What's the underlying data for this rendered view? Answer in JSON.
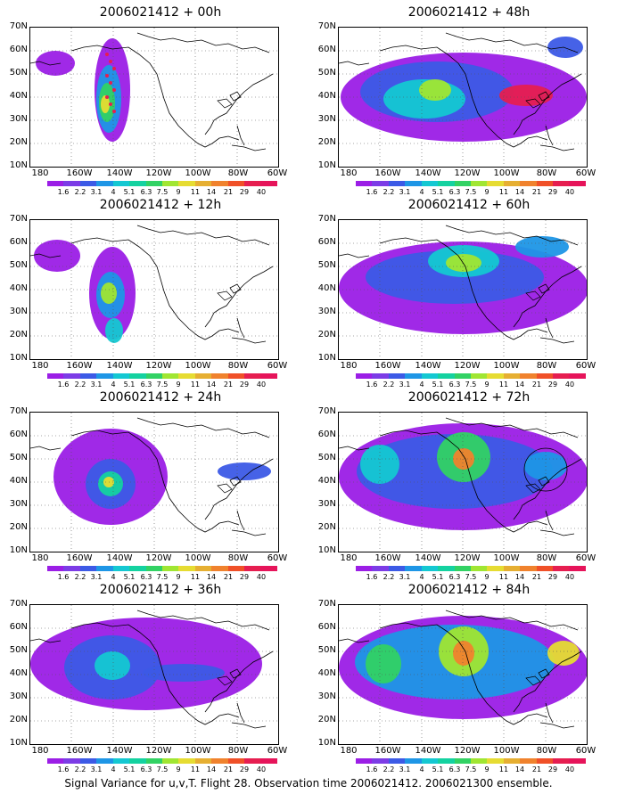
{
  "panels": [
    {
      "title": "2006021412 + 00h"
    },
    {
      "title": "2006021412 + 48h"
    },
    {
      "title": "2006021412 + 12h"
    },
    {
      "title": "2006021412 + 60h"
    },
    {
      "title": "2006021412 + 24h"
    },
    {
      "title": "2006021412 + 72h"
    },
    {
      "title": "2006021412 + 36h"
    },
    {
      "title": "2006021412 + 84h"
    }
  ],
  "axes": {
    "lat_labels": [
      "70N",
      "60N",
      "50N",
      "40N",
      "30N",
      "20N",
      "10N"
    ],
    "lon_labels": [
      "180",
      "160W",
      "140W",
      "120W",
      "100W",
      "80W",
      "60W"
    ]
  },
  "colorbar": {
    "labels": [
      "1.6",
      "2.2",
      "3.1",
      "4",
      "5.1",
      "6.3",
      "7.5",
      "9",
      "11",
      "14",
      "21",
      "29",
      "40"
    ],
    "colors": [
      "#9b1ee6",
      "#7c3ce6",
      "#3c5ae6",
      "#1e96e6",
      "#14c8d2",
      "#14d2a0",
      "#32d264",
      "#a0e632",
      "#e6dc32",
      "#e6af32",
      "#f0822d",
      "#f05028",
      "#e61e50",
      "#e6145a"
    ]
  },
  "footer": "Signal Variance for u,v,T. Flight 28. Observation time 2006021412. 2006021300 ensemble."
}
